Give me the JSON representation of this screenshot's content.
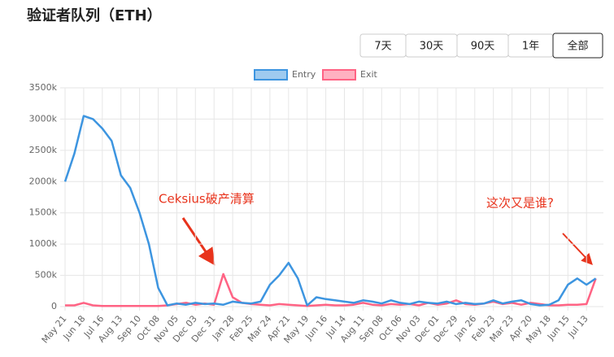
{
  "controls": {
    "ranges": [
      "7天",
      "30天",
      "90天",
      "1年",
      "全部"
    ],
    "active": 4
  },
  "chart_data": {
    "type": "line",
    "title": "验证者队列（ETH）",
    "categories": [
      "May 21",
      null,
      "Jun 18",
      null,
      "Jul 16",
      null,
      "Aug 13",
      null,
      "Sep 10",
      null,
      "Oct 08",
      null,
      "Nov 05",
      null,
      "Dec 03",
      null,
      "Dec 31",
      null,
      "Jan 28",
      null,
      "Feb 25",
      null,
      "Mar 24",
      null,
      "Apr 21",
      null,
      "May 19",
      null,
      "Jun 16",
      null,
      "Jul 14",
      null,
      "Aug 11",
      null,
      "Sep 08",
      null,
      "Oct 06",
      null,
      "Nov 03",
      null,
      "Dec 01",
      null,
      "Dec 29",
      null,
      "Jan 26",
      null,
      "Feb 23",
      null,
      "Mar 23",
      null,
      "Apr 20",
      null,
      "May 18",
      null,
      "Jun 15",
      null,
      "Jul 13",
      null
    ],
    "series": [
      {
        "name": "Entry",
        "color": "#3d95e0",
        "values": [
          2000,
          2450,
          3050,
          3000,
          2850,
          2650,
          2100,
          1900,
          1500,
          1000,
          300,
          20,
          50,
          30,
          60,
          40,
          50,
          30,
          80,
          60,
          50,
          80,
          350,
          500,
          700,
          450,
          20,
          150,
          120,
          100,
          80,
          60,
          100,
          80,
          50,
          100,
          60,
          40,
          80,
          60,
          50,
          80,
          40,
          60,
          40,
          50,
          100,
          50,
          80,
          100,
          40,
          20,
          30,
          100,
          350,
          450,
          350,
          450
        ]
      },
      {
        "name": "Exit",
        "color": "#ff6384",
        "values": [
          20,
          20,
          60,
          20,
          10,
          10,
          10,
          10,
          10,
          10,
          10,
          20,
          40,
          60,
          30,
          50,
          30,
          520,
          150,
          60,
          40,
          30,
          20,
          40,
          30,
          20,
          10,
          20,
          30,
          20,
          20,
          30,
          60,
          30,
          20,
          40,
          30,
          40,
          20,
          60,
          30,
          50,
          100,
          40,
          30,
          50,
          80,
          40,
          60,
          30,
          60,
          40,
          20,
          20,
          30,
          30,
          40,
          450
        ]
      }
    ],
    "ylim": [
      0,
      3500
    ],
    "yticks": [
      0,
      {
        "value": 500,
        "label": "500k"
      },
      {
        "value": 1000,
        "label": "1000k"
      },
      {
        "value": 1500,
        "label": "1500k"
      },
      {
        "value": 2000,
        "label": "2000k"
      },
      {
        "value": 2500,
        "label": "2500k"
      },
      {
        "value": 3000,
        "label": "3000k"
      },
      {
        "value": 3500,
        "label": "3500k"
      }
    ],
    "grid": true,
    "legend": "top",
    "annotations": [
      "Ceksius破产清算",
      "这次又是谁?"
    ]
  }
}
